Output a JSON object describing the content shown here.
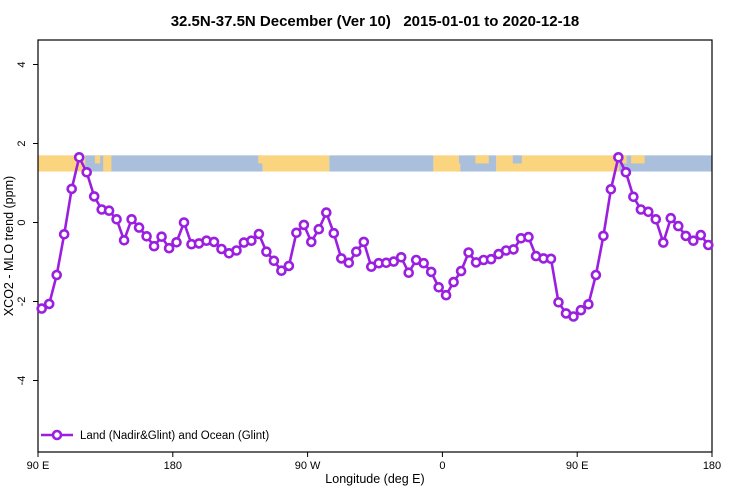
{
  "chart_data": {
    "type": "line",
    "title": "32.5N-37.5N December (Ver 10)   2015-01-01 to 2020-12-18",
    "xlabel": "Longitude (deg E)",
    "ylabel": "XCO2 - MLO trend (ppm)",
    "x_axis": {
      "range": [
        90,
        540
      ],
      "ticks": [
        {
          "lon": 90,
          "label": "90 E"
        },
        {
          "lon": 180,
          "label": "180"
        },
        {
          "lon": 270,
          "label": "90 W"
        },
        {
          "lon": 360,
          "label": "0"
        },
        {
          "lon": 450,
          "label": "90 E"
        },
        {
          "lon": 540,
          "label": "180"
        }
      ]
    },
    "y_axis": {
      "range": [
        -5.8,
        4.6
      ],
      "ticks": [
        {
          "value": 4,
          "label": "4"
        },
        {
          "value": 2,
          "label": "2"
        },
        {
          "value": 0,
          "label": "0"
        },
        {
          "value": -2,
          "label": "-2"
        },
        {
          "value": -4,
          "label": "-4"
        }
      ]
    },
    "series": [
      {
        "name": "Land (Nadir&Glint) and Ocean (Glint)",
        "color": "#9B1FE0",
        "marker": "open-circle",
        "x": [
          92.5,
          97.5,
          102.5,
          107.5,
          112.5,
          117.5,
          122.5,
          127.5,
          132.5,
          137.5,
          142.5,
          147.5,
          152.5,
          157.5,
          162.5,
          167.5,
          172.5,
          177.5,
          182.5,
          187.5,
          192.5,
          197.5,
          202.5,
          207.5,
          212.5,
          217.5,
          222.5,
          227.5,
          232.5,
          237.5,
          242.5,
          247.5,
          252.5,
          257.5,
          262.5,
          267.5,
          272.5,
          277.5,
          282.5,
          287.5,
          292.5,
          297.5,
          302.5,
          307.5,
          312.5,
          317.5,
          322.5,
          327.5,
          332.5,
          337.5,
          342.5,
          347.5,
          352.5,
          357.5,
          362.5,
          367.5,
          372.5,
          377.5,
          382.5,
          387.5,
          392.5,
          397.5,
          402.5,
          407.5,
          412.5,
          417.5,
          422.5,
          427.5,
          432.5,
          437.5,
          442.5,
          447.5,
          452.5,
          457.5,
          462.5,
          467.5,
          472.5,
          477.5,
          482.5,
          487.5,
          492.5,
          497.5,
          502.5,
          507.5,
          512.5,
          517.5,
          522.5,
          527.5,
          532.5,
          537.5
        ],
        "y": [
          -2.18,
          -2.06,
          -1.33,
          -0.3,
          0.85,
          1.65,
          1.27,
          0.66,
          0.33,
          0.3,
          0.08,
          -0.45,
          0.08,
          -0.13,
          -0.35,
          -0.6,
          -0.36,
          -0.65,
          -0.5,
          0.0,
          -0.55,
          -0.53,
          -0.46,
          -0.49,
          -0.67,
          -0.78,
          -0.71,
          -0.51,
          -0.46,
          -0.29,
          -0.74,
          -0.97,
          -1.22,
          -1.1,
          -0.26,
          -0.06,
          -0.49,
          -0.17,
          0.25,
          -0.27,
          -0.91,
          -1.02,
          -0.74,
          -0.49,
          -1.12,
          -1.03,
          -1.02,
          -0.99,
          -0.88,
          -1.27,
          -0.95,
          -1.03,
          -1.25,
          -1.64,
          -1.84,
          -1.51,
          -1.23,
          -0.76,
          -1.01,
          -0.95,
          -0.93,
          -0.8,
          -0.71,
          -0.68,
          -0.4,
          -0.37,
          -0.85,
          -0.91,
          -0.92,
          -2.02,
          -2.3,
          -2.38,
          -2.22,
          -2.07,
          -1.33,
          -0.34,
          0.84,
          1.65,
          1.27,
          0.65,
          0.33,
          0.27,
          0.08,
          -0.51,
          0.11,
          -0.09,
          -0.34,
          -0.46,
          -0.32,
          -0.57
        ]
      }
    ],
    "land_ocean_band": {
      "description": "coastline strip along 32.5N-37.5N",
      "y_top_value": 1.7,
      "y_bottom_value": 1.29,
      "land_color": "#FBD480",
      "ocean_color": "#A9BFDB",
      "segments": [
        {
          "from": 90,
          "to": 121.5,
          "type": "land"
        },
        {
          "from": 121.5,
          "to": 240,
          "type": "ocean"
        },
        {
          "from": 240,
          "to": 284.5,
          "type": "land"
        },
        {
          "from": 284.5,
          "to": 354,
          "type": "ocean"
        },
        {
          "from": 354,
          "to": 371,
          "type": "land"
        },
        {
          "from": 371,
          "to": 396,
          "type": "ocean"
        },
        {
          "from": 396,
          "to": 478,
          "type": "land"
        },
        {
          "from": 478,
          "to": 540,
          "type": "ocean"
        }
      ],
      "patches": [
        {
          "from": 128,
          "to": 131.5,
          "type": "land",
          "part": "top"
        },
        {
          "from": 133.5,
          "to": 139,
          "type": "land",
          "part": "full"
        },
        {
          "from": 237,
          "to": 240,
          "type": "land",
          "part": "top"
        },
        {
          "from": 368,
          "to": 372,
          "type": "land",
          "part": "bottom"
        },
        {
          "from": 382,
          "to": 391,
          "type": "land",
          "part": "top"
        },
        {
          "from": 407,
          "to": 413,
          "type": "ocean",
          "part": "top"
        },
        {
          "from": 479,
          "to": 483,
          "type": "land",
          "part": "top"
        },
        {
          "from": 486,
          "to": 495,
          "type": "land",
          "part": "top"
        }
      ]
    }
  },
  "legend": {
    "entries": [
      {
        "label": "Land (Nadir&Glint) and Ocean (Glint)",
        "color": "#9B1FE0"
      }
    ]
  }
}
